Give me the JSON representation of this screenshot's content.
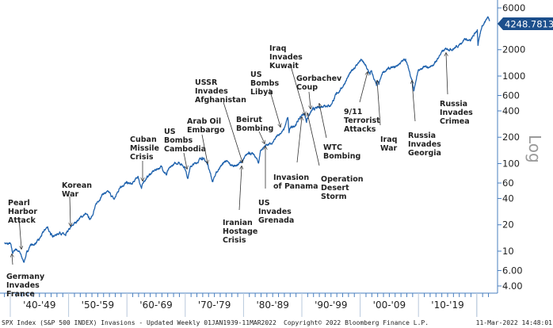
{
  "chart_data": {
    "type": "line",
    "title": "",
    "ylabel": "Log",
    "y_scale": "log",
    "ylim": [
      3.5,
      6500
    ],
    "xlim": [
      1939.0,
      2022.2
    ],
    "y_ticks": [
      "6000",
      "2000",
      "1000",
      "600",
      "400",
      "200",
      "100",
      "60",
      "40",
      "20",
      "10",
      "6.00",
      "4.00"
    ],
    "x_tick_labels": [
      "'40-'49",
      "'50-'59",
      "'60-'69",
      "'70-'79",
      "'80-'89",
      "'90-'99",
      "'00-'09",
      "'10-'19"
    ],
    "last_value_label": "4248.7813",
    "grid": false,
    "line_color": "#1f62ad",
    "tag_color": "#1c4f8c",
    "series": [
      {
        "x": [
          1939.0,
          1939.5,
          1940.0,
          1940.4,
          1940.9,
          1941.5,
          1941.9,
          1942.3,
          1942.9,
          1943.5,
          1943.9,
          1944.9,
          1945.9,
          1946.4,
          1946.9,
          1947.9,
          1948.5,
          1949.5,
          1949.9,
          1950.9,
          1951.9,
          1952.9,
          1953.7,
          1953.9,
          1954.9,
          1955.9,
          1956.9,
          1957.8,
          1957.9,
          1958.9,
          1959.9,
          1960.9,
          1961.9,
          1962.5,
          1962.9,
          1963.9,
          1964.9,
          1965.9,
          1966.8,
          1966.9,
          1967.9,
          1968.9,
          1969.9,
          1970.4,
          1970.9,
          1971.9,
          1972.9,
          1973.9,
          1974.7,
          1974.9,
          1975.9,
          1976.9,
          1977.9,
          1978.9,
          1979.9,
          1980.9,
          1981.9,
          1982.6,
          1982.9,
          1983.9,
          1984.9,
          1985.9,
          1986.9,
          1987.6,
          1987.8,
          1987.9,
          1988.9,
          1989.9,
          1990.5,
          1990.8,
          1990.9,
          1991.9,
          1992.9,
          1993.9,
          1994.9,
          1995.9,
          1996.9,
          1997.9,
          1998.9,
          1999.9,
          2000.2,
          2000.9,
          2001.7,
          2001.9,
          2002.8,
          2002.9,
          2003.2,
          2003.9,
          2004.9,
          2005.9,
          2006.9,
          2007.8,
          2007.9,
          2008.9,
          2009.2,
          2009.9,
          2010.9,
          2011.9,
          2012.9,
          2013.9,
          2014.9,
          2015.9,
          2016.9,
          2017.9,
          2018.9,
          2019.9,
          2020.1,
          2020.2,
          2020.9,
          2021.9,
          2022.2
        ],
        "values": [
          12.5,
          12.0,
          12.2,
          9.5,
          10.6,
          10.0,
          8.7,
          7.5,
          9.8,
          12.0,
          11.7,
          13.3,
          17.4,
          19.0,
          15.3,
          15.3,
          16.5,
          15.0,
          16.8,
          20.4,
          23.8,
          26.6,
          23.0,
          24.8,
          36.0,
          45.5,
          46.7,
          39.0,
          40.0,
          55.2,
          59.9,
          58.1,
          71.6,
          52.0,
          63.1,
          75.0,
          84.8,
          92.4,
          74.0,
          80.3,
          96.5,
          103.9,
          92.1,
          69.0,
          92.2,
          102.1,
          118.1,
          97.6,
          62.0,
          68.6,
          90.2,
          107.5,
          95.1,
          96.1,
          107.9,
          135.8,
          122.6,
          102.0,
          140.6,
          164.9,
          167.2,
          211.3,
          242.2,
          336.0,
          225.0,
          247.1,
          277.7,
          353.4,
          368.0,
          295.0,
          330.2,
          417.1,
          435.7,
          466.5,
          459.3,
          615.9,
          740.7,
          970.4,
          1229,
          1469,
          1527,
          1320,
          1040,
          1148,
          777,
          880,
          800,
          1112,
          1212,
          1248,
          1418,
          1565,
          1468,
          903,
          676,
          1115,
          1258,
          1258,
          1426,
          1848,
          2059,
          2044,
          2239,
          2674,
          2507,
          3231,
          3386,
          2237,
          3756,
          4766,
          4248.78
        ]
      }
    ],
    "annotations": [
      {
        "lines": [
          "Germany",
          "Invades",
          "France"
        ]
      },
      {
        "lines": [
          "Pearl",
          "Harbor",
          "Attack"
        ]
      },
      {
        "lines": [
          "Korean",
          "War"
        ]
      },
      {
        "lines": [
          "Cuban",
          "Missile",
          "Crisis"
        ]
      },
      {
        "lines": [
          "US",
          "Bombs",
          "Cambodia"
        ]
      },
      {
        "lines": [
          "Arab Oil",
          "Embargo"
        ]
      },
      {
        "lines": [
          "USSR",
          "Invades",
          "Afghanistan"
        ]
      },
      {
        "lines": [
          "Iranian",
          "Hostage",
          "Crisis"
        ]
      },
      {
        "lines": [
          "Beirut",
          "Bombing"
        ]
      },
      {
        "lines": [
          "US",
          "Invades",
          "Grenada"
        ]
      },
      {
        "lines": [
          "US",
          "Bombs",
          "Libya"
        ]
      },
      {
        "lines": [
          "Iraq",
          "Invades",
          "Kuwait"
        ]
      },
      {
        "lines": [
          "Invasion",
          "of Panama"
        ]
      },
      {
        "lines": [
          "Gorbachev",
          "Coup"
        ]
      },
      {
        "lines": [
          "Operation",
          "Desert",
          "Storm"
        ]
      },
      {
        "lines": [
          "WTC",
          "Bombing"
        ]
      },
      {
        "lines": [
          "9/11",
          "Terrorist",
          "Attacks"
        ]
      },
      {
        "lines": [
          "Iraq",
          "War"
        ]
      },
      {
        "lines": [
          "Russia",
          "Invades",
          "Georgia"
        ]
      },
      {
        "lines": [
          "Russia",
          "Invades",
          "Crimea"
        ]
      }
    ]
  },
  "footer": {
    "description": "SPX Index (S&P 500 INDEX) Invasions - Updated  Weekly 01JAN1939-11MAR2022",
    "copyright": "Copyright© 2022 Bloomberg Finance L.P.",
    "timestamp": "11-Mar-2022 14:48:01"
  }
}
